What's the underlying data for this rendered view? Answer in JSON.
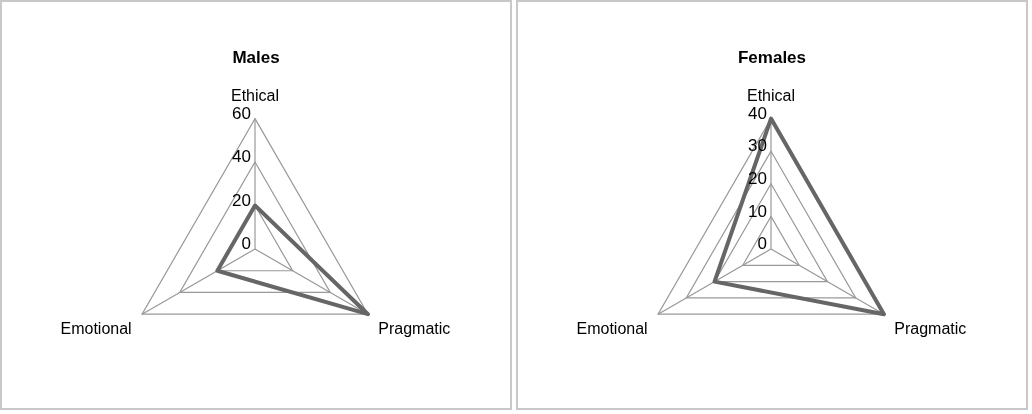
{
  "chart_data": [
    {
      "type": "radar",
      "title": "Males",
      "categories": [
        "Ethical",
        "Pragmatic",
        "Emotional"
      ],
      "ylim": [
        0,
        60
      ],
      "yticks": [
        0,
        20,
        40,
        60
      ],
      "grid": true,
      "legend": false,
      "marker": "none",
      "series": [
        {
          "color": "#666666",
          "values": [
            20,
            60,
            20
          ]
        }
      ]
    },
    {
      "type": "radar",
      "title": "Females",
      "categories": [
        "Ethical",
        "Pragmatic",
        "Emotional"
      ],
      "ylim": [
        0,
        40
      ],
      "yticks": [
        0,
        10,
        20,
        30,
        40
      ],
      "grid": true,
      "legend": false,
      "marker": "none",
      "series": [
        {
          "color": "#666666",
          "values": [
            40,
            40,
            20
          ]
        }
      ]
    }
  ]
}
